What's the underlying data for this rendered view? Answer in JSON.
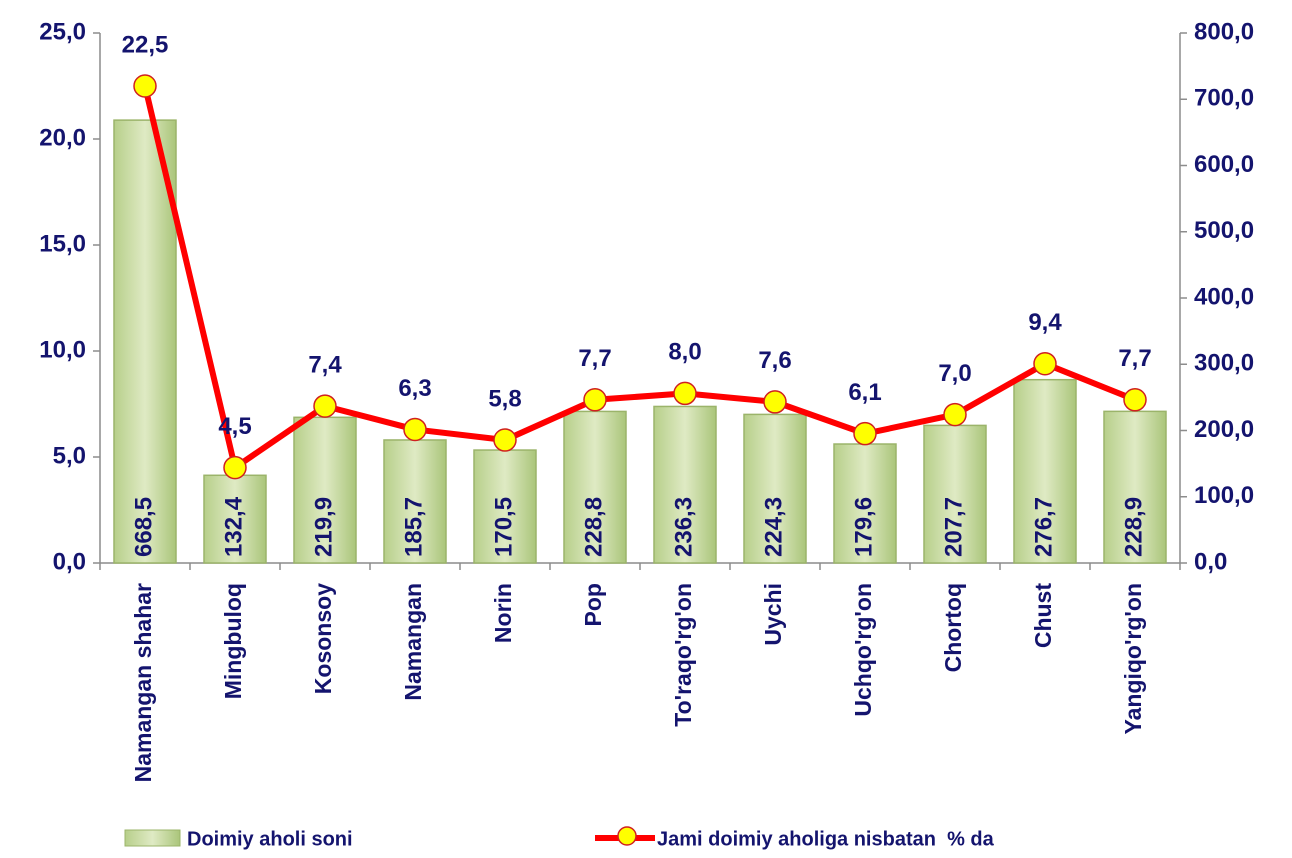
{
  "chart_data": {
    "type": "bar",
    "categories": [
      "Namangan shahar",
      "Mingbuloq",
      "Kosonsoy",
      "Namangan",
      "Norin",
      "Pop",
      "To'raqo'rg'on",
      "Uychi",
      "Uchqo'rg'on",
      "Chortoq",
      "Chust",
      "Yangiqo'rg'on"
    ],
    "series": [
      {
        "name": "Doimiy aholi soni",
        "type": "bar",
        "axis": "y2",
        "color": "#c4d79b",
        "values": [
          668.5,
          132.4,
          219.9,
          185.7,
          170.5,
          228.8,
          236.3,
          224.3,
          179.6,
          207.7,
          276.7,
          228.9
        ],
        "value_labels": [
          "668,5",
          "132,4",
          "219,9",
          "185,7",
          "170,5",
          "228,8",
          "236,3",
          "224,3",
          "179,6",
          "207,7",
          "276,7",
          "228,9"
        ]
      },
      {
        "name": "Jami doimiy aholiga nisbatan  % da",
        "type": "line",
        "axis": "y",
        "color": "#ff0000",
        "marker_color": "#ffff00",
        "values": [
          22.5,
          4.5,
          7.4,
          6.3,
          5.8,
          7.7,
          8.0,
          7.6,
          6.1,
          7.0,
          9.4,
          7.7
        ],
        "value_labels": [
          "22,5",
          "4,5",
          "7,4",
          "6,3",
          "5,8",
          "7,7",
          "8,0",
          "7,6",
          "6,1",
          "7,0",
          "9,4",
          "7,7"
        ]
      }
    ],
    "ylim": [
      0,
      25
    ],
    "yticks": [
      {
        "value": 0,
        "label": "0,0"
      },
      {
        "value": 5,
        "label": "5,0"
      },
      {
        "value": 10,
        "label": "10,0"
      },
      {
        "value": 15,
        "label": "15,0"
      },
      {
        "value": 20,
        "label": "20,0"
      },
      {
        "value": 25,
        "label": "25,0"
      }
    ],
    "y2lim": [
      0,
      800
    ],
    "y2ticks": [
      {
        "value": 0,
        "label": "0,0"
      },
      {
        "value": 100,
        "label": "100,0"
      },
      {
        "value": 200,
        "label": "200,0"
      },
      {
        "value": 300,
        "label": "300,0"
      },
      {
        "value": 400,
        "label": "400,0"
      },
      {
        "value": 500,
        "label": "500,0"
      },
      {
        "value": 600,
        "label": "600,0"
      },
      {
        "value": 700,
        "label": "700,0"
      },
      {
        "value": 800,
        "label": "800,0"
      }
    ],
    "grid": false,
    "legend": "bottom"
  }
}
